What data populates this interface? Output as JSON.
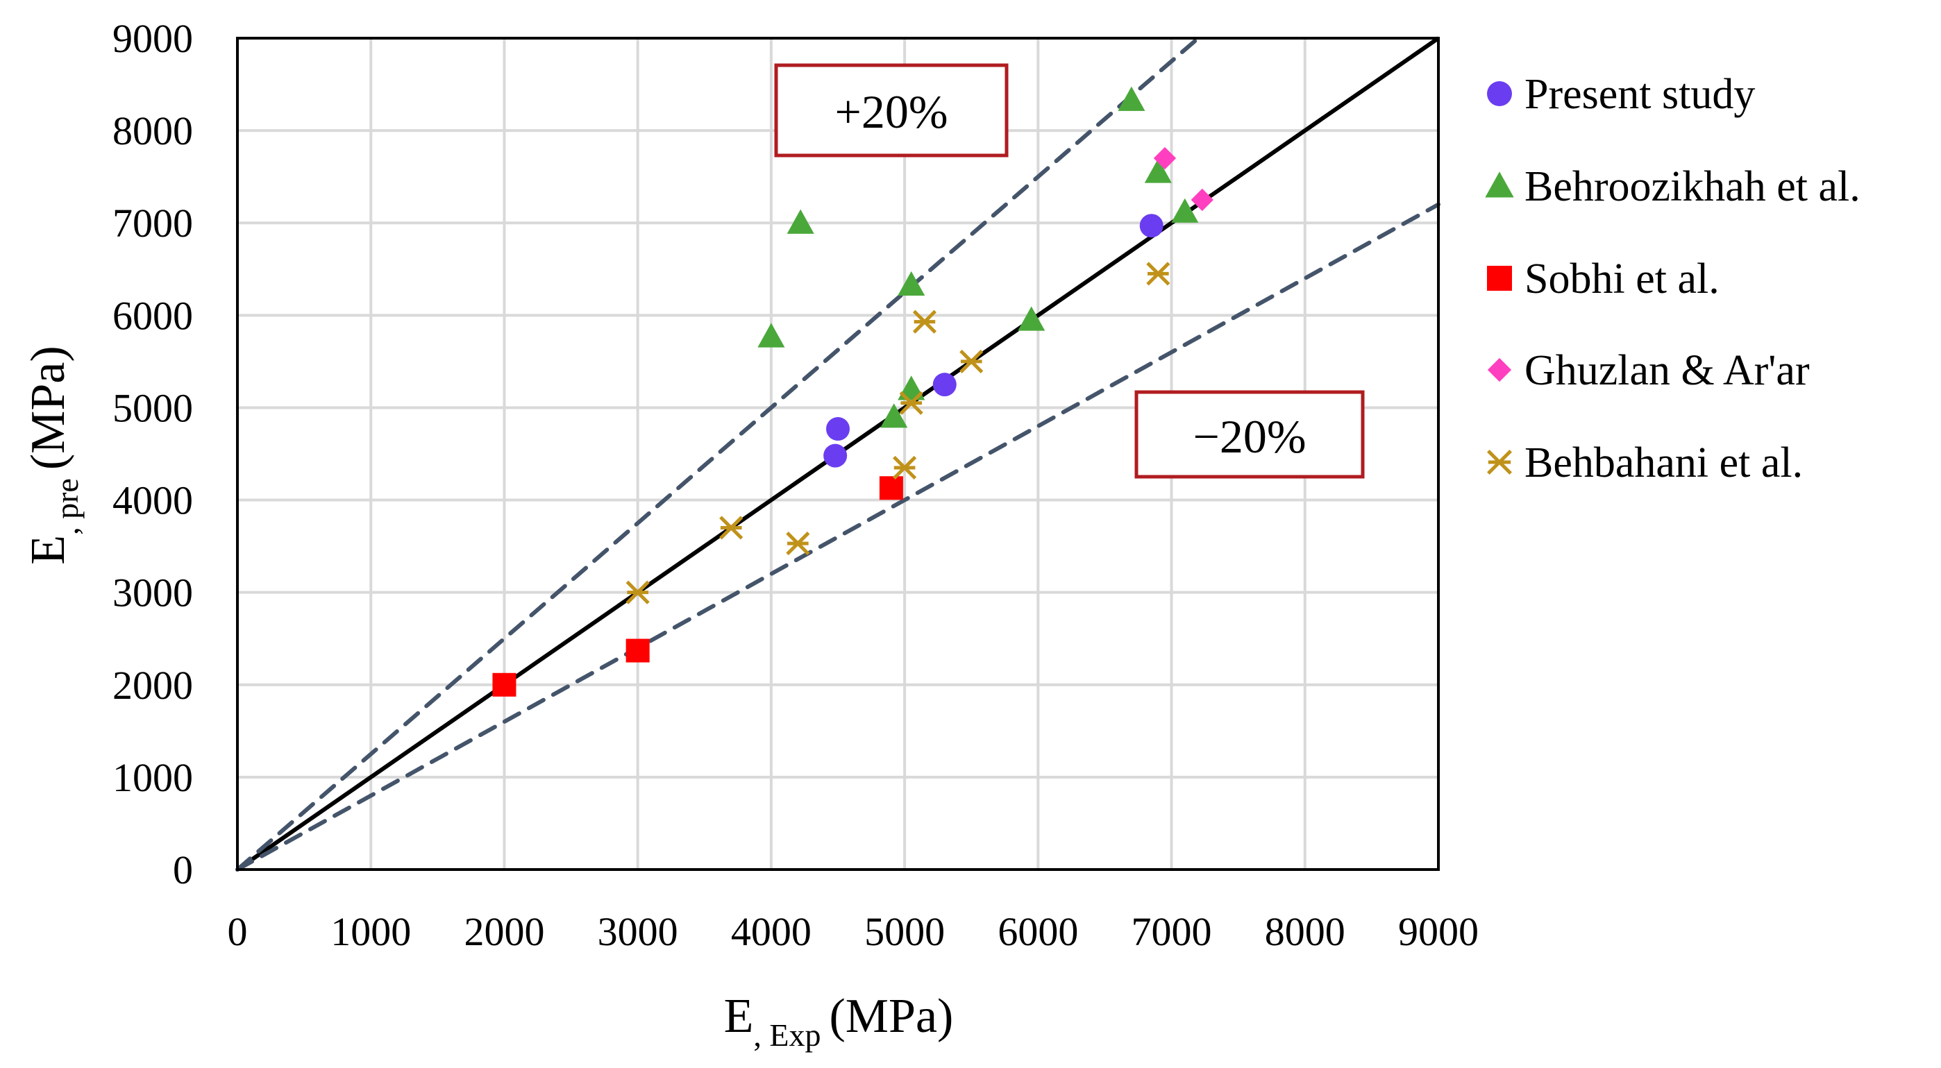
{
  "chart_data": {
    "type": "scatter",
    "title": "",
    "xlabel": {
      "main": "E",
      "sub": ", Exp",
      "unit": "(MPa)"
    },
    "ylabel": {
      "main": "E",
      "sub": ", pre",
      "unit": "(MPa)"
    },
    "xlim": [
      0,
      9000
    ],
    "ylim": [
      0,
      9000
    ],
    "xticks": [
      "0",
      "1000",
      "2000",
      "3000",
      "4000",
      "5000",
      "6000",
      "7000",
      "8000",
      "9000"
    ],
    "yticks": [
      "0",
      "1000",
      "2000",
      "3000",
      "4000",
      "5000",
      "6000",
      "7000",
      "8000",
      "9000"
    ],
    "grid": true,
    "legend_position": "right",
    "reference_lines": [
      {
        "name": "equality-line",
        "slope": 1.0,
        "style": "solid",
        "color": "#000000"
      },
      {
        "name": "plus-20-line",
        "slope": 1.25,
        "style": "dashed",
        "color": "#44546a"
      },
      {
        "name": "minus-20-line",
        "slope": 0.8,
        "style": "dashed",
        "color": "#44546a"
      }
    ],
    "annotations": [
      {
        "name": "plus-20-label",
        "text": "+20%",
        "border_color": "#b01c20"
      },
      {
        "name": "minus-20-label",
        "text": "−20%",
        "border_color": "#b01c20"
      }
    ],
    "series": [
      {
        "name": "Present study",
        "marker": "circle",
        "color": "#6a3df0",
        "points": [
          [
            4500,
            4770
          ],
          [
            4480,
            4480
          ],
          [
            5300,
            5250
          ],
          [
            6850,
            6970
          ]
        ]
      },
      {
        "name": "Behroozikhah et al.",
        "marker": "triangle",
        "color": "#4aa83a",
        "points": [
          [
            4000,
            5770
          ],
          [
            4220,
            7000
          ],
          [
            5050,
            6330
          ],
          [
            4920,
            4900
          ],
          [
            5050,
            5200
          ],
          [
            5950,
            5950
          ],
          [
            6700,
            8330
          ],
          [
            6900,
            7550
          ],
          [
            7100,
            7120
          ]
        ]
      },
      {
        "name": "Sobhi et al.",
        "marker": "square",
        "color": "#ff0000",
        "points": [
          [
            2000,
            2000
          ],
          [
            3000,
            2370
          ],
          [
            4900,
            4130
          ]
        ]
      },
      {
        "name": "Ghuzlan & Ar'ar",
        "marker": "diamond",
        "color": "#ff3fbf",
        "points": [
          [
            6950,
            7700
          ],
          [
            7230,
            7250
          ]
        ]
      },
      {
        "name": "Behbahani et al.",
        "marker": "asterisk",
        "color": "#c0921a",
        "points": [
          [
            3000,
            3000
          ],
          [
            3700,
            3700
          ],
          [
            4200,
            3530
          ],
          [
            5000,
            4350
          ],
          [
            5150,
            5930
          ],
          [
            5050,
            5050
          ],
          [
            5500,
            5500
          ],
          [
            6900,
            6450
          ]
        ]
      }
    ]
  },
  "colors": {
    "grid": "#d9d9d9",
    "axis": "#000000",
    "dashed": "#44546a",
    "box_border": "#b01c20"
  }
}
